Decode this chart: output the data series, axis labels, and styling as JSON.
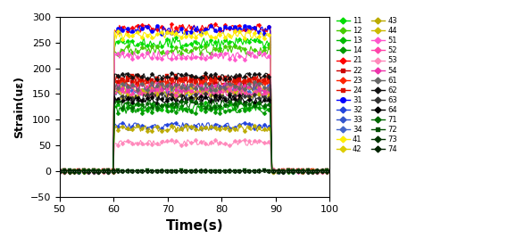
{
  "xlabel": "Time(s)",
  "ylabel": "Strain(uε)",
  "xlim": [
    50,
    100
  ],
  "ylim": [
    -50,
    300
  ],
  "xticks": [
    50,
    60,
    70,
    80,
    90,
    100
  ],
  "yticks": [
    -50,
    0,
    50,
    100,
    150,
    200,
    250,
    300
  ],
  "t_start": 50,
  "t_end": 100,
  "load_start": 60,
  "load_end": 89,
  "dt": 0.3,
  "series": [
    {
      "label": "11",
      "color": "#00dd00",
      "marker": "D",
      "base": 250,
      "noise": 10,
      "ms": 2.5,
      "lw": 0.8
    },
    {
      "label": "12",
      "color": "#44cc00",
      "marker": "D",
      "base": 235,
      "noise": 8,
      "ms": 2.5,
      "lw": 0.8
    },
    {
      "label": "13",
      "color": "#00bb00",
      "marker": "D",
      "base": 125,
      "noise": 8,
      "ms": 2.5,
      "lw": 0.8
    },
    {
      "label": "14",
      "color": "#009900",
      "marker": "D",
      "base": 120,
      "noise": 8,
      "ms": 2.5,
      "lw": 0.8
    },
    {
      "label": "21",
      "color": "#ff0000",
      "marker": "D",
      "base": 278,
      "noise": 8,
      "ms": 2.5,
      "lw": 0.8
    },
    {
      "label": "22",
      "color": "#cc0000",
      "marker": "s",
      "base": 175,
      "noise": 8,
      "ms": 2.5,
      "lw": 0.8
    },
    {
      "label": "23",
      "color": "#ff2200",
      "marker": "D",
      "base": 170,
      "noise": 8,
      "ms": 2.5,
      "lw": 0.8
    },
    {
      "label": "24",
      "color": "#dd1100",
      "marker": "s",
      "base": 178,
      "noise": 8,
      "ms": 2.5,
      "lw": 0.8
    },
    {
      "label": "31",
      "color": "#0000ff",
      "marker": "o",
      "base": 275,
      "noise": 8,
      "ms": 3.0,
      "lw": 0.8
    },
    {
      "label": "32",
      "color": "#2244dd",
      "marker": "D",
      "base": 88,
      "noise": 6,
      "ms": 2.5,
      "lw": 0.8
    },
    {
      "label": "33",
      "color": "#3355cc",
      "marker": "D",
      "base": 160,
      "noise": 8,
      "ms": 2.5,
      "lw": 0.8
    },
    {
      "label": "34",
      "color": "#4466cc",
      "marker": "D",
      "base": 155,
      "noise": 8,
      "ms": 2.5,
      "lw": 0.8
    },
    {
      "label": "41",
      "color": "#ffee00",
      "marker": "D",
      "base": 265,
      "noise": 8,
      "ms": 2.5,
      "lw": 0.8
    },
    {
      "label": "42",
      "color": "#ddcc00",
      "marker": "D",
      "base": 158,
      "noise": 8,
      "ms": 2.5,
      "lw": 0.8
    },
    {
      "label": "43",
      "color": "#bbaa00",
      "marker": "D",
      "base": 83,
      "noise": 6,
      "ms": 2.5,
      "lw": 0.8
    },
    {
      "label": "44",
      "color": "#ccbb00",
      "marker": "D",
      "base": 150,
      "noise": 8,
      "ms": 2.5,
      "lw": 0.8
    },
    {
      "label": "51",
      "color": "#ff55cc",
      "marker": "D",
      "base": 225,
      "noise": 8,
      "ms": 2.5,
      "lw": 0.8
    },
    {
      "label": "52",
      "color": "#ff44aa",
      "marker": "D",
      "base": 153,
      "noise": 8,
      "ms": 2.5,
      "lw": 0.8
    },
    {
      "label": "53",
      "color": "#ff88bb",
      "marker": "D",
      "base": 55,
      "noise": 6,
      "ms": 2.5,
      "lw": 0.8
    },
    {
      "label": "54",
      "color": "#ee33aa",
      "marker": "D",
      "base": 163,
      "noise": 8,
      "ms": 2.5,
      "lw": 0.8
    },
    {
      "label": "61",
      "color": "#666666",
      "marker": "D",
      "base": 165,
      "noise": 8,
      "ms": 2.5,
      "lw": 0.8
    },
    {
      "label": "62",
      "color": "#111111",
      "marker": "D",
      "base": 185,
      "noise": 6,
      "ms": 2.5,
      "lw": 0.8
    },
    {
      "label": "63",
      "color": "#333333",
      "marker": "D",
      "base": 143,
      "noise": 8,
      "ms": 2.5,
      "lw": 0.8
    },
    {
      "label": "64",
      "color": "#000000",
      "marker": "D",
      "base": 140,
      "noise": 8,
      "ms": 2.5,
      "lw": 0.8
    },
    {
      "label": "71",
      "color": "#006600",
      "marker": "D",
      "base": 130,
      "noise": 8,
      "ms": 2.5,
      "lw": 0.8
    },
    {
      "label": "72",
      "color": "#004d00",
      "marker": "s",
      "base": 0,
      "noise": 1,
      "ms": 2.5,
      "lw": 0.8
    },
    {
      "label": "73",
      "color": "#003300",
      "marker": "D",
      "base": 0,
      "noise": 1,
      "ms": 2.5,
      "lw": 0.8
    },
    {
      "label": "74",
      "color": "#002200",
      "marker": "D",
      "base": 0,
      "noise": 1,
      "ms": 2.5,
      "lw": 0.8
    }
  ],
  "legend_col1": [
    "11",
    "12",
    "13",
    "14",
    "21",
    "22",
    "23",
    "24",
    "31",
    "32",
    "33",
    "34",
    "41",
    "42"
  ],
  "legend_col2": [
    "43",
    "44",
    "51",
    "52",
    "53",
    "54",
    "61",
    "62",
    "63",
    "64",
    "71",
    "72",
    "73",
    "74"
  ]
}
